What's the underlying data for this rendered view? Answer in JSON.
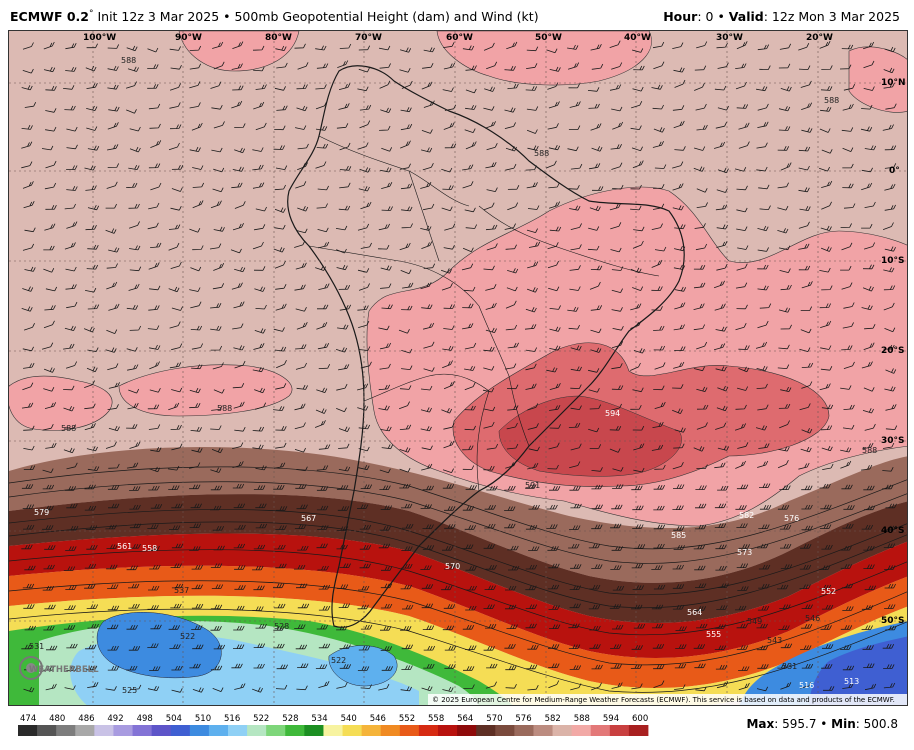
{
  "title": {
    "model": "ECMWF 0.2",
    "degree": "°",
    "init": " Init 12z 3 Mar 2025 • 500mb Geopotential Height (dam) and Wind (kt)",
    "hour_label": "Hour",
    "hour_value": ": 0 • ",
    "valid_label": "Valid",
    "valid_value": ": 12z Mon 3 Mar 2025"
  },
  "longitude_labels": [
    "100°W",
    "90°W",
    "80°W",
    "70°W",
    "60°W",
    "50°W",
    "40°W",
    "30°W",
    "20°W"
  ],
  "latitude_labels": [
    "10°N",
    "0°",
    "10°S",
    "20°S",
    "30°S",
    "40°S",
    "50°S"
  ],
  "contour_labels": [
    "588",
    "588",
    "588",
    "588",
    "588",
    "594",
    "591",
    "588",
    "585",
    "582",
    "579",
    "576",
    "573",
    "570",
    "567",
    "564",
    "561",
    "558",
    "555",
    "552",
    "549",
    "546",
    "543",
    "537",
    "531",
    "528",
    "525",
    "522",
    "522",
    "516",
    "513",
    "531"
  ],
  "copyright": "© 2025 European Centre for Medium-Range Weather Forecasts (ECMWF). This service is based on data and products of the ECMWF.",
  "logo_text": "WEATHERBELL",
  "legend": {
    "ticks": [
      "474",
      "480",
      "486",
      "492",
      "498",
      "504",
      "510",
      "516",
      "522",
      "528",
      "534",
      "540",
      "546",
      "552",
      "558",
      "564",
      "570",
      "576",
      "582",
      "588",
      "594",
      "600"
    ],
    "colors": [
      "#2a2a2a",
      "#555555",
      "#7d7d7d",
      "#a8a8a8",
      "#c9c2e6",
      "#a89be0",
      "#8373d6",
      "#5e55c9",
      "#3f5fd2",
      "#3d8be0",
      "#5eb0ee",
      "#8fd0f5",
      "#b5e6c2",
      "#7ed67a",
      "#3fb93a",
      "#1c8f22",
      "#f7f3a0",
      "#f5dd55",
      "#f5b43a",
      "#f08a22",
      "#e85a18",
      "#d62a12",
      "#b8120e",
      "#8e0a0a",
      "#5e2f24",
      "#7a4a3c",
      "#9a6a5c",
      "#bc8c80",
      "#dbb3a8",
      "#f2a9a6",
      "#e37878",
      "#c94040",
      "#a82020"
    ]
  },
  "maxmin": {
    "max_label": "Max",
    "max_value": ": 595.7 • ",
    "min_label": "Min",
    "min_value": ": 500.8"
  },
  "colors": {
    "background": "#dcbab3",
    "h588": "#f1a3a6",
    "h594": "#de6b6f",
    "h597": "#c8474d"
  }
}
